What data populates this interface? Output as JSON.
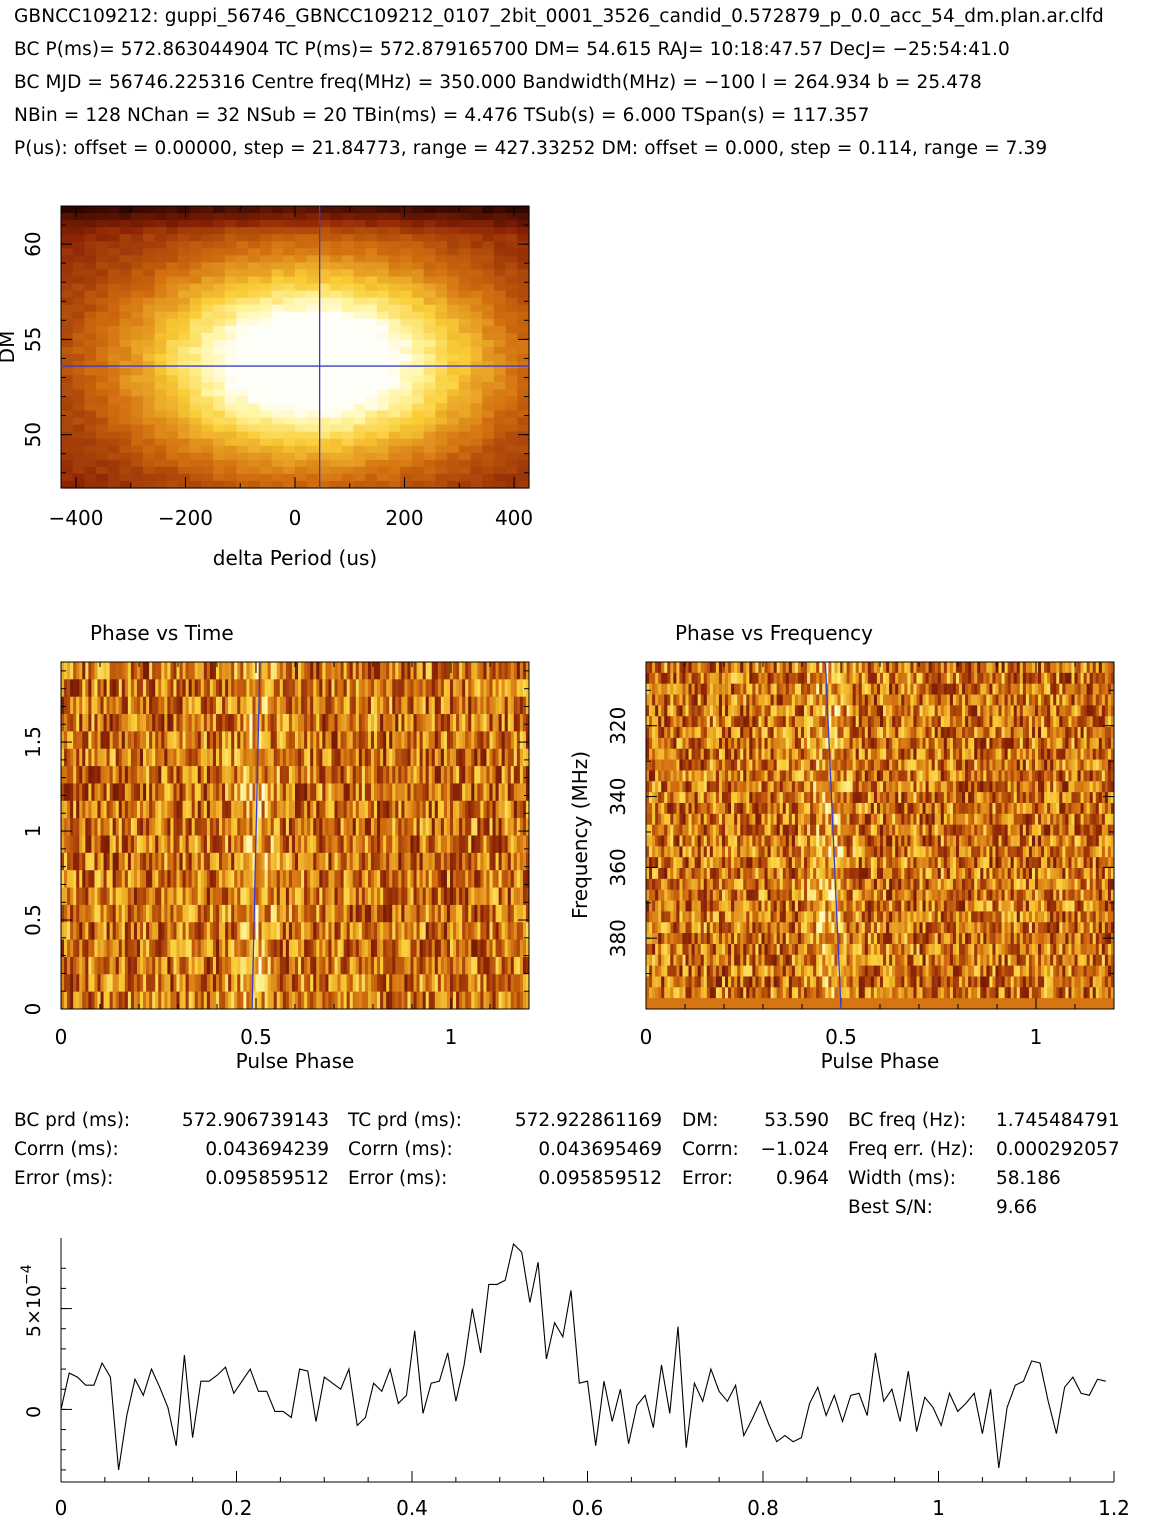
{
  "header": {
    "line1": "GBNCC109212: guppi_56746_GBNCC109212_0107_2bit_0001_3526_candid_0.572879_p_0.0_acc_54_dm.plan.ar.clfd",
    "line2": "BC P(ms)= 572.863044904 TC P(ms)= 572.879165700 DM= 54.615 RAJ= 10:18:47.57 DecJ= −25:54:41.0",
    "line3": "BC MJD = 56746.225316 Centre freq(MHz) = 350.000 Bandwidth(MHz) = −100 l = 264.934 b = 25.478",
    "line4": "NBin = 128 NChan = 32 NSub = 20 TBin(ms) = 4.476 TSub(s) = 6.000 TSpan(s) = 117.357",
    "line5": "P(us): offset = 0.00000, step = 21.84773, range = 427.33252 DM: offset = 0.000, step = 0.114, range = 7.39"
  },
  "colors": {
    "marker_line": "#3b3bd0",
    "axis": "#000000"
  },
  "chart_data": [
    {
      "name": "dm-period-map",
      "type": "heatmap",
      "colormap": "heat",
      "xlabel": "delta Period (us)",
      "ylabel": "DM",
      "xlim": [
        -427.33,
        427.33
      ],
      "ylim": [
        47.2,
        62.0
      ],
      "xticks": [
        "−400",
        "−200",
        "0",
        "200",
        "400"
      ],
      "xtick_values": [
        -400,
        -200,
        0,
        200,
        400
      ],
      "yticks": [
        "50",
        "55",
        "60"
      ],
      "ytick_values": [
        50,
        55,
        60
      ],
      "crosshair": {
        "x": 45,
        "y": 53.6
      },
      "peak": {
        "x": 30,
        "y": 53.8
      },
      "nx": 40,
      "ny": 40
    },
    {
      "name": "phase-vs-time",
      "type": "heatmap",
      "colormap": "heat",
      "title": "Phase vs Time",
      "xlabel": "Pulse Phase",
      "ylabel": "",
      "xlim": [
        0,
        1.2
      ],
      "ylim": [
        0,
        1.95
      ],
      "xticks": [
        "0",
        "0.5",
        "1"
      ],
      "xtick_values": [
        0,
        0.5,
        1
      ],
      "yticks": [
        "0",
        "0.5",
        "1",
        "1.5"
      ],
      "ytick_values": [
        0,
        0.5,
        1,
        1.5
      ],
      "guide_line": {
        "x_bottom": 0.49,
        "x_top": 0.51
      },
      "nx": 154,
      "ny": 20
    },
    {
      "name": "phase-vs-frequency",
      "type": "heatmap",
      "colormap": "heat",
      "title": "Phase vs Frequency",
      "xlabel": "Pulse Phase",
      "ylabel": "Frequency (MHz)",
      "xlim": [
        0,
        1.2
      ],
      "ylim": [
        400,
        302
      ],
      "xticks": [
        "0",
        "0.5",
        "1"
      ],
      "xtick_values": [
        0,
        0.5,
        1
      ],
      "yticks": [
        "320",
        "340",
        "360",
        "380"
      ],
      "ytick_values": [
        320,
        340,
        360,
        380
      ],
      "guide_line": {
        "x_top": 0.46,
        "x_bottom": 0.5
      },
      "nx": 154,
      "ny": 32
    },
    {
      "name": "pulse-profile",
      "type": "line",
      "xlabel": "",
      "ylabel": "",
      "xlim": [
        0,
        1.2
      ],
      "ylim": [
        -0.00036,
        0.00085
      ],
      "xticks": [
        "0",
        "0.2",
        "0.4",
        "0.6",
        "0.8",
        "1",
        "1.2"
      ],
      "xtick_values": [
        0,
        0.2,
        0.4,
        0.6,
        0.8,
        1.0,
        1.2
      ],
      "ytick_values": [
        0,
        0.0005
      ],
      "ytick_zero": "0",
      "ytick_mantissa": "5×10",
      "ytick_exponent": "−4",
      "x": [
        0.0,
        0.00938,
        0.01875,
        0.02813,
        0.0375,
        0.04688,
        0.05625,
        0.06563,
        0.075,
        0.08438,
        0.09375,
        0.10313,
        0.1125,
        0.12188,
        0.13125,
        0.14063,
        0.15,
        0.15938,
        0.16875,
        0.17813,
        0.1875,
        0.19688,
        0.20625,
        0.21563,
        0.225,
        0.23438,
        0.24375,
        0.25313,
        0.2625,
        0.27188,
        0.28125,
        0.29063,
        0.3,
        0.30938,
        0.31875,
        0.32813,
        0.3375,
        0.34688,
        0.35625,
        0.36563,
        0.375,
        0.38438,
        0.39375,
        0.40313,
        0.4125,
        0.42188,
        0.43125,
        0.44063,
        0.45,
        0.45938,
        0.46875,
        0.47813,
        0.4875,
        0.49688,
        0.50625,
        0.51563,
        0.525,
        0.53438,
        0.54375,
        0.55313,
        0.5625,
        0.57188,
        0.58125,
        0.59063,
        0.6,
        0.60938,
        0.61875,
        0.62813,
        0.6375,
        0.64688,
        0.65625,
        0.66563,
        0.675,
        0.68438,
        0.69375,
        0.70313,
        0.7125,
        0.72188,
        0.73125,
        0.74063,
        0.75,
        0.75938,
        0.76875,
        0.77813,
        0.7875,
        0.79688,
        0.80625,
        0.81563,
        0.825,
        0.83438,
        0.84375,
        0.85313,
        0.8625,
        0.87188,
        0.88125,
        0.89063,
        0.9,
        0.90938,
        0.91875,
        0.92813,
        0.9375,
        0.94688,
        0.95625,
        0.96563,
        0.975,
        0.98438,
        0.99375,
        1.00313,
        1.0125,
        1.02188,
        1.03125,
        1.04063,
        1.05,
        1.05938,
        1.06875,
        1.07813,
        1.0875,
        1.09688,
        1.10625,
        1.11563,
        1.125,
        1.13438,
        1.14375,
        1.15313,
        1.1625,
        1.17188,
        1.18125,
        1.19063
      ],
      "y": [
        0.0,
        0.00018,
        0.00016,
        0.00012,
        0.00012,
        0.00023,
        0.00016,
        -0.0003,
        -3e-05,
        0.00015,
        7e-05,
        0.0002,
        0.00011,
        1e-05,
        -0.00018,
        0.00027,
        -0.00014,
        0.00014,
        0.00014,
        0.00017,
        0.00021,
        8e-05,
        0.00014,
        0.0002,
        9e-05,
        9e-05,
        -1e-05,
        -1e-05,
        -4e-05,
        0.0002,
        0.00019,
        -6e-05,
        0.00016,
        0.00013,
        0.0001,
        0.0002,
        -8e-05,
        -4e-05,
        0.00013,
        9e-05,
        0.0002,
        3e-05,
        7e-05,
        0.00039,
        -2e-05,
        0.00013,
        0.00014,
        0.00028,
        4e-05,
        0.00022,
        0.0005,
        0.00028,
        0.00062,
        0.00062,
        0.00064,
        0.00082,
        0.00078,
        0.00053,
        0.00073,
        0.00025,
        0.00043,
        0.00036,
        0.00059,
        0.00013,
        0.00014,
        -0.00018,
        0.00014,
        -6e-05,
        0.0001,
        -0.00017,
        2e-05,
        7e-05,
        -9e-05,
        0.00022,
        -2e-05,
        0.00041,
        -0.00019,
        0.00013,
        4e-05,
        0.0002,
        9e-05,
        4e-05,
        0.00012,
        -0.00013,
        -5e-05,
        4e-05,
        -7e-05,
        -0.00016,
        -0.00013,
        -0.00016,
        -0.00014,
        3e-05,
        0.00011,
        -3e-05,
        7e-05,
        -6e-05,
        7e-05,
        8e-05,
        -3e-05,
        0.00028,
        4e-05,
        0.0001,
        -6e-05,
        0.00019,
        -0.00011,
        6e-05,
        1e-05,
        -8e-05,
        8e-05,
        -1e-05,
        3e-05,
        8e-05,
        -0.00012,
        0.0001,
        -0.00029,
        1e-05,
        0.00012,
        0.00014,
        0.00024,
        0.00023,
        4e-05,
        -0.00012,
        0.00011,
        0.00016,
        8e-05,
        7e-05,
        0.00015,
        0.00014
      ]
    }
  ],
  "stats": {
    "bc_prd_label": "BC prd (ms):",
    "bc_prd": "572.906739143",
    "bc_corrn_label": "Corrn (ms):",
    "bc_corrn": "0.043694239",
    "bc_error_label": "Error (ms):",
    "bc_error": "0.095859512",
    "tc_prd_label": "TC prd (ms):",
    "tc_prd": "572.922861169",
    "tc_corrn_label": "Corrn (ms):",
    "tc_corrn": "0.043695469",
    "tc_error_label": "Error (ms):",
    "tc_error": "0.095859512",
    "dm_label": "DM:",
    "dm": "53.590",
    "dm_corrn_label": "Corrn:",
    "dm_corrn": "−1.024",
    "dm_error_label": "Error:",
    "dm_error": "0.964",
    "bc_freq_label": "BC freq (Hz):",
    "bc_freq": "1.745484791",
    "freq_err_label": "Freq err. (Hz):",
    "freq_err": "0.000292057",
    "width_label": "Width (ms):",
    "width": "58.186",
    "sn_label": "Best S/N:",
    "sn": "9.66"
  }
}
